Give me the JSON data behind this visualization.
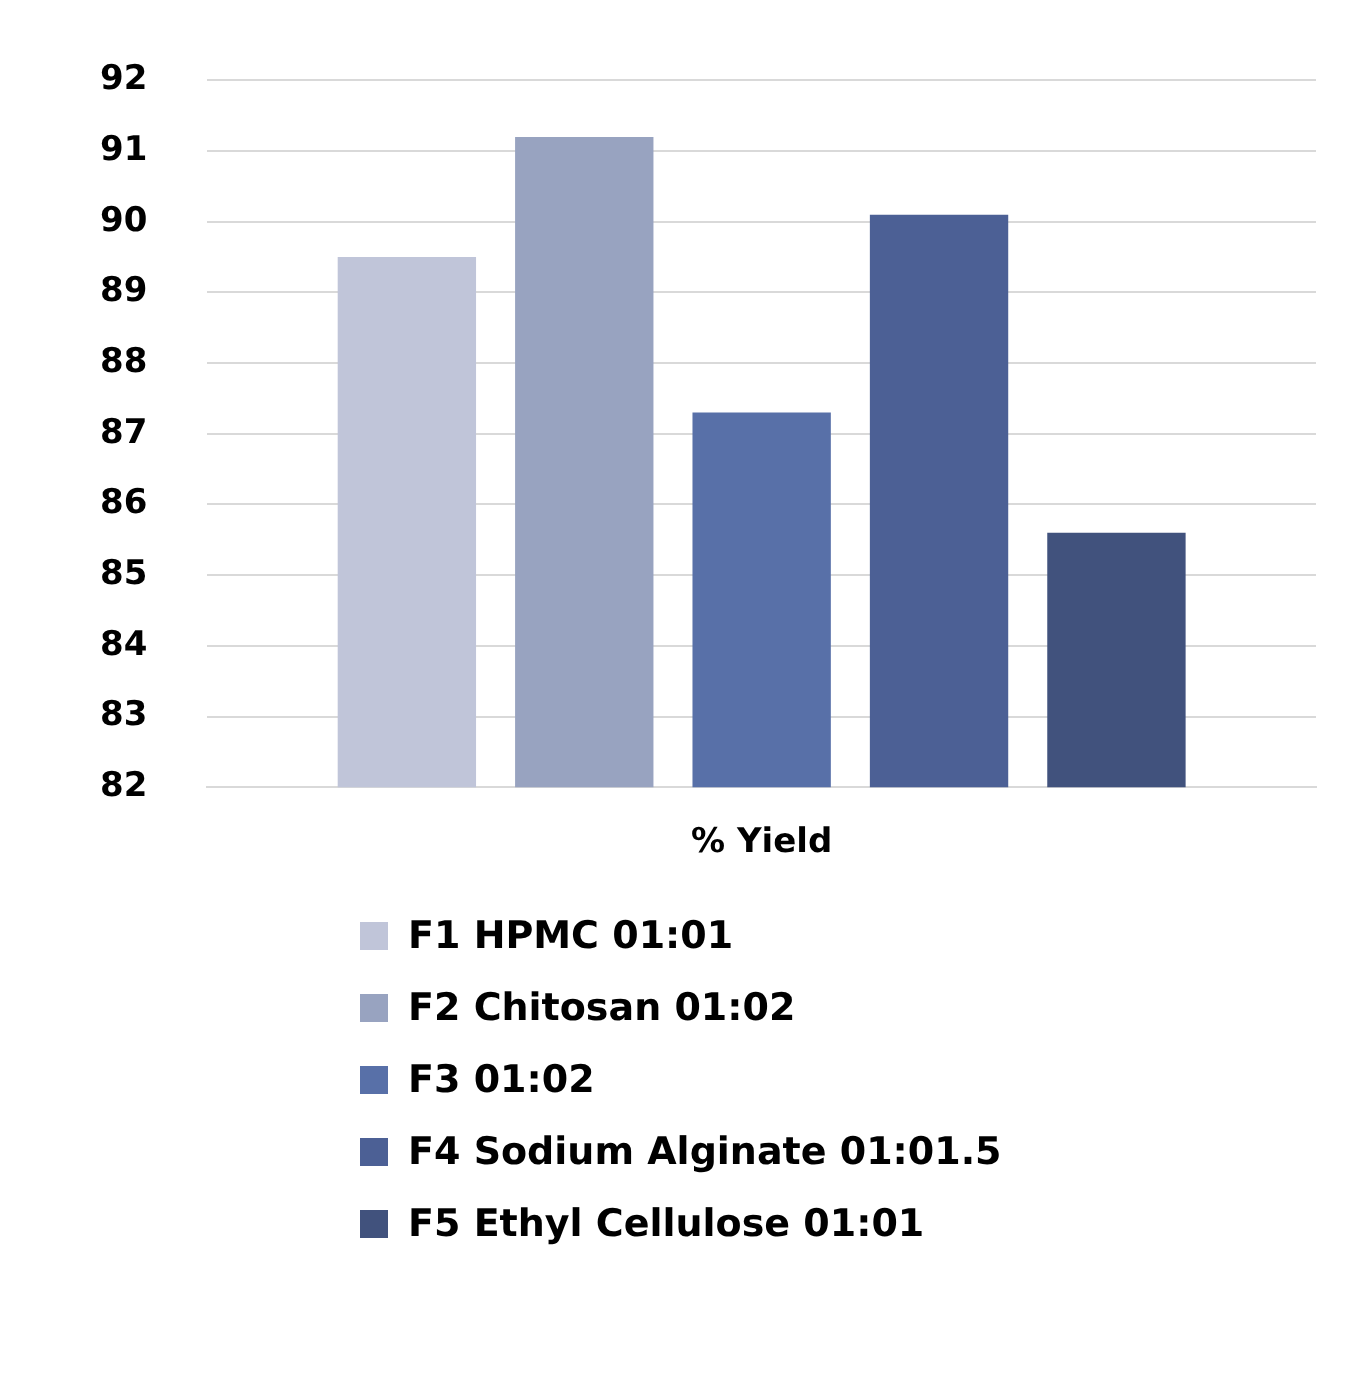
{
  "chart_data": {
    "type": "bar",
    "categories": [
      "% Yield"
    ],
    "series": [
      {
        "name": "F1 HPMC 01:01",
        "color": "#c0c5d9",
        "values": [
          89.5
        ]
      },
      {
        "name": "F2 Chitosan 01:02",
        "color": "#98a3c0",
        "values": [
          91.2
        ]
      },
      {
        "name": "F3 01:02",
        "color": "#5870a8",
        "values": [
          87.3
        ]
      },
      {
        "name": "F4 Sodium Alginate 01:01.5",
        "color": "#4c6095",
        "values": [
          90.1
        ]
      },
      {
        "name": "F5 Ethyl Cellulose 01:01",
        "color": "#41527d",
        "values": [
          85.6
        ]
      }
    ],
    "ylim": [
      82,
      92
    ],
    "yticks": [
      82,
      83,
      84,
      85,
      86,
      87,
      88,
      89,
      90,
      91,
      92
    ],
    "grid": "y",
    "legend": "bottom"
  }
}
